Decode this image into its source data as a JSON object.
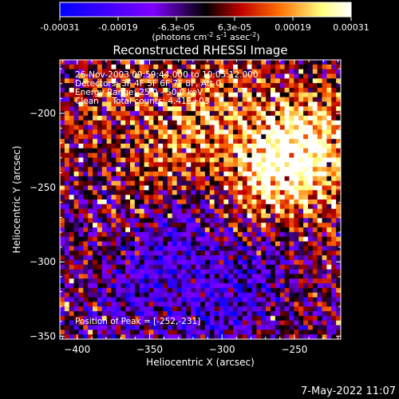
{
  "colorbar": {
    "min": -0.00031,
    "max": 0.00031,
    "tick_labels": [
      "-0.00031",
      "-0.00019",
      "-6.3e-05",
      "6.3e-05",
      "0.00019",
      "0.00031"
    ],
    "unit_base": "(photons cm",
    "unit_exp1": "-2",
    "unit_mid1": " s",
    "unit_exp2": "-1",
    "unit_mid2": " asec",
    "unit_exp3": "-2",
    "unit_end": ")",
    "colors": [
      "#0000ff",
      "#7f00ff",
      "#000000",
      "#bf0000",
      "#ff6a00",
      "#ffff80",
      "#ffffff"
    ]
  },
  "chart_data": {
    "type": "heatmap",
    "title": "Reconstructed RHESSI Image",
    "xlabel": "Heliocentric X (arcsec)",
    "ylabel": "Heliocentric Y (arcsec)",
    "xlim": [
      -412,
      -218
    ],
    "ylim": [
      -352,
      -164
    ],
    "x_ticks": [
      -400,
      -350,
      -300,
      -250
    ],
    "y_ticks": [
      -350,
      -300,
      -250,
      -200
    ],
    "info": {
      "line1": "26-Nov-2003 09:59:44.000 to 10:05:12.000",
      "line2": "Detectors: 3F 4F 5F 6F 7F 8F, Att 0",
      "line3": "Energy Range: 25.0 - 50.0 keV",
      "line4": "Clean     Total counts: 4.41E+03"
    },
    "peak_label": "Position of Peak = [-252,-231]",
    "peak": [
      -252,
      -231
    ]
  },
  "footer": {
    "timestamp": "7-May-2022 11:07"
  }
}
